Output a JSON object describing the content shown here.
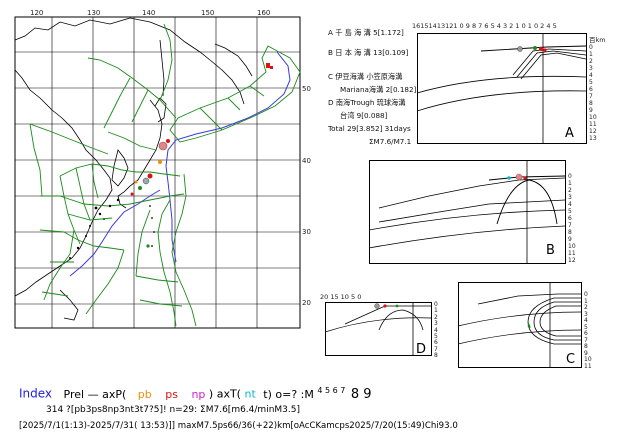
{
  "map": {
    "lon_ticks": [
      "120",
      "130",
      "140",
      "150",
      "160"
    ],
    "lat_ticks": [
      "50",
      "40",
      "30",
      "20"
    ]
  },
  "legend": {
    "a": "A  千 島 海 溝  5[1.172]",
    "b": "B  日 本 海 溝  13[0.109]",
    "c": "C  伊豆海溝 小笠原海溝",
    "c2": "Mariana海溝  2[0.182]",
    "d": "D  南海Trough 琉球海溝",
    "d2": "台湾  9[0.088]",
    "total": "Total 29[3.852] 31days",
    "sum": "ΣM7.6/M7.1"
  },
  "panel_a": {
    "letter": "A",
    "top_scale": "16151413121 0 9 8 7 6 5 4  3  2  1  0    1  0  2  4  5",
    "unit": "百km",
    "depth_ticks": [
      "0",
      "1",
      "2",
      "3",
      "4",
      "5",
      "6",
      "7",
      "8",
      "9",
      "10",
      "11",
      "12",
      "13",
      "14"
    ]
  },
  "panel_b": {
    "letter": "B",
    "depth_ticks": [
      "0",
      "1",
      "2",
      "3",
      "4",
      "5",
      "6",
      "7",
      "8",
      "9",
      "10",
      "11",
      "12",
      "13"
    ]
  },
  "panel_c": {
    "letter": "C",
    "depth_ticks": [
      "0",
      "1",
      "2",
      "3",
      "4",
      "5",
      "6",
      "7",
      "8",
      "9",
      "10",
      "11"
    ]
  },
  "panel_d": {
    "letter": "D",
    "top_scale": "20      15      10       5        0",
    "depth_ticks": [
      "0",
      "1",
      "2",
      "3",
      "4",
      "5",
      "6",
      "7",
      "8"
    ]
  },
  "footer": {
    "index_word": "Index",
    "prel": "Prel  —  axP(",
    "pb": "pb",
    "ps": "ps",
    "np": "np",
    "axt": ") axT(",
    "nt": "nt",
    "t_close": "t)  o=?  :M",
    "mags_small": "4 5 6 7",
    "mags_big": "8 9",
    "line2": "314 ?[pb3ps8np3nt3t7?5]! n=29: ΣM7.6[m6.4/minM3.5]",
    "line3": "[2025/7/1(1:13)-2025/7/31( 13:53)]] maxM7.5ps66/36(+22)km[oAcCKamcps2025/7/20(15:49)Chi93.0"
  },
  "colors": {
    "grid_green": "#1a8a1a",
    "trench_blue": "#3a3ad8",
    "quake_red": "#e01010",
    "index_blue": "#2020e0",
    "orange": "#e8900a",
    "magenta": "#d020d0",
    "cyan": "#10b8c8"
  }
}
